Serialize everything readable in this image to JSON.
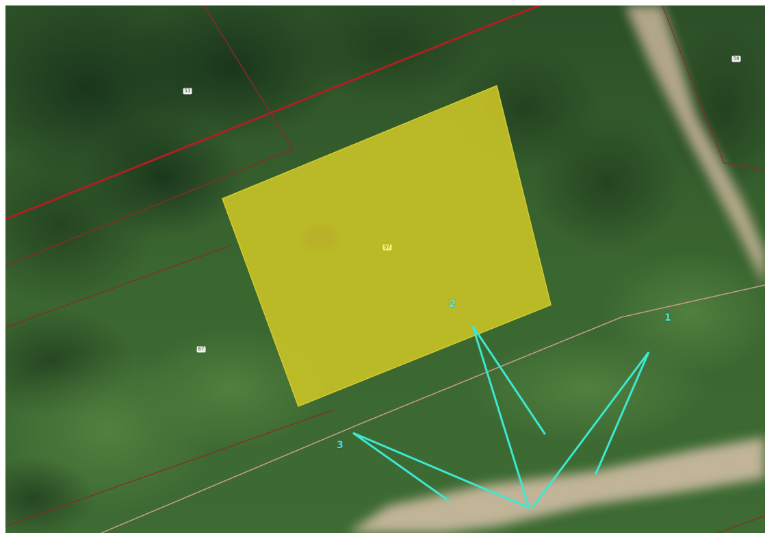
{
  "map": {
    "parcels": [
      {
        "id": "parcel-53",
        "label": "53"
      },
      {
        "id": "parcel-58",
        "label": "58"
      },
      {
        "id": "parcel-67",
        "label": "67"
      },
      {
        "id": "parcel-57",
        "label": "57",
        "selected": true
      }
    ],
    "points": [
      {
        "id": "point-1",
        "label": "1"
      },
      {
        "id": "point-2",
        "label": "2"
      },
      {
        "id": "point-3",
        "label": "3"
      }
    ],
    "colors": {
      "selected_parcel_fill": "#c9c327",
      "boundary_primary": "#b01e22",
      "boundary_secondary": "#8a2a26",
      "boundary_road": "#c29a8c",
      "survey_lines": "#3ce8d2",
      "vegetation_dark": "#1f3a1c",
      "vegetation": "#3b6b30",
      "path": "#cdb9a0"
    }
  }
}
